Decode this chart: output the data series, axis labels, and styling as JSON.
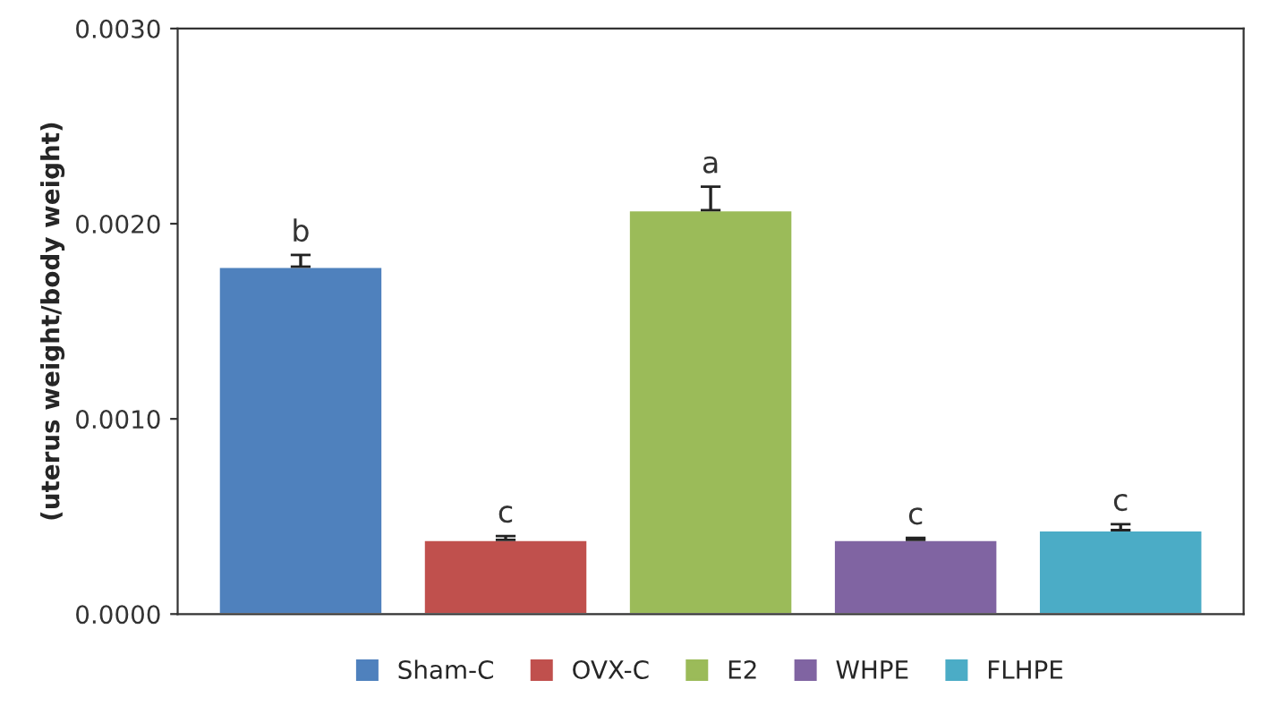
{
  "chart_data": {
    "type": "bar",
    "ylabel": "(uterus weight/body weight)",
    "categories": [
      null,
      null,
      null,
      null,
      null
    ],
    "series": [
      {
        "name": "Sham-C",
        "color": "#4f81bd",
        "values": [
          0.00178,
          null,
          null,
          null,
          null
        ],
        "errors": [
          [
            0.00178,
            0.00184
          ],
          null,
          null,
          null,
          null
        ]
      },
      {
        "name": "OVX-C",
        "color": "#c0504d",
        "values": [
          null,
          0.00038,
          null,
          null,
          null
        ],
        "errors": [
          null,
          [
            0.00038,
            0.0004
          ],
          null,
          null,
          null
        ]
      },
      {
        "name": "E2",
        "color": "#9bbb59",
        "values": [
          null,
          null,
          0.00207,
          null,
          null
        ],
        "errors": [
          null,
          null,
          [
            0.00207,
            0.00219
          ],
          null,
          null
        ]
      },
      {
        "name": "WHPE",
        "color": "#8064a2",
        "values": [
          null,
          null,
          null,
          0.00038,
          null
        ],
        "errors": [
          null,
          null,
          null,
          [
            0.00038,
            0.00039
          ],
          null
        ]
      },
      {
        "name": "FLHPE",
        "color": "#4bacc6",
        "values": [
          null,
          null,
          null,
          null,
          0.00043
        ],
        "errors": [
          null,
          null,
          null,
          null,
          [
            0.00043,
            0.00046
          ]
        ]
      }
    ],
    "annotations": [
      "b",
      "c",
      "a",
      "c",
      "c"
    ],
    "ylim": [
      0,
      0.003
    ],
    "yticks": [
      {
        "value": 0,
        "label": "0.0000"
      },
      {
        "value": 0.001,
        "label": "0.0010"
      },
      {
        "value": 0.002,
        "label": "0.0020"
      },
      {
        "value": 0.003,
        "label": "0.0030"
      }
    ],
    "grid": false,
    "legend": "bottom"
  }
}
